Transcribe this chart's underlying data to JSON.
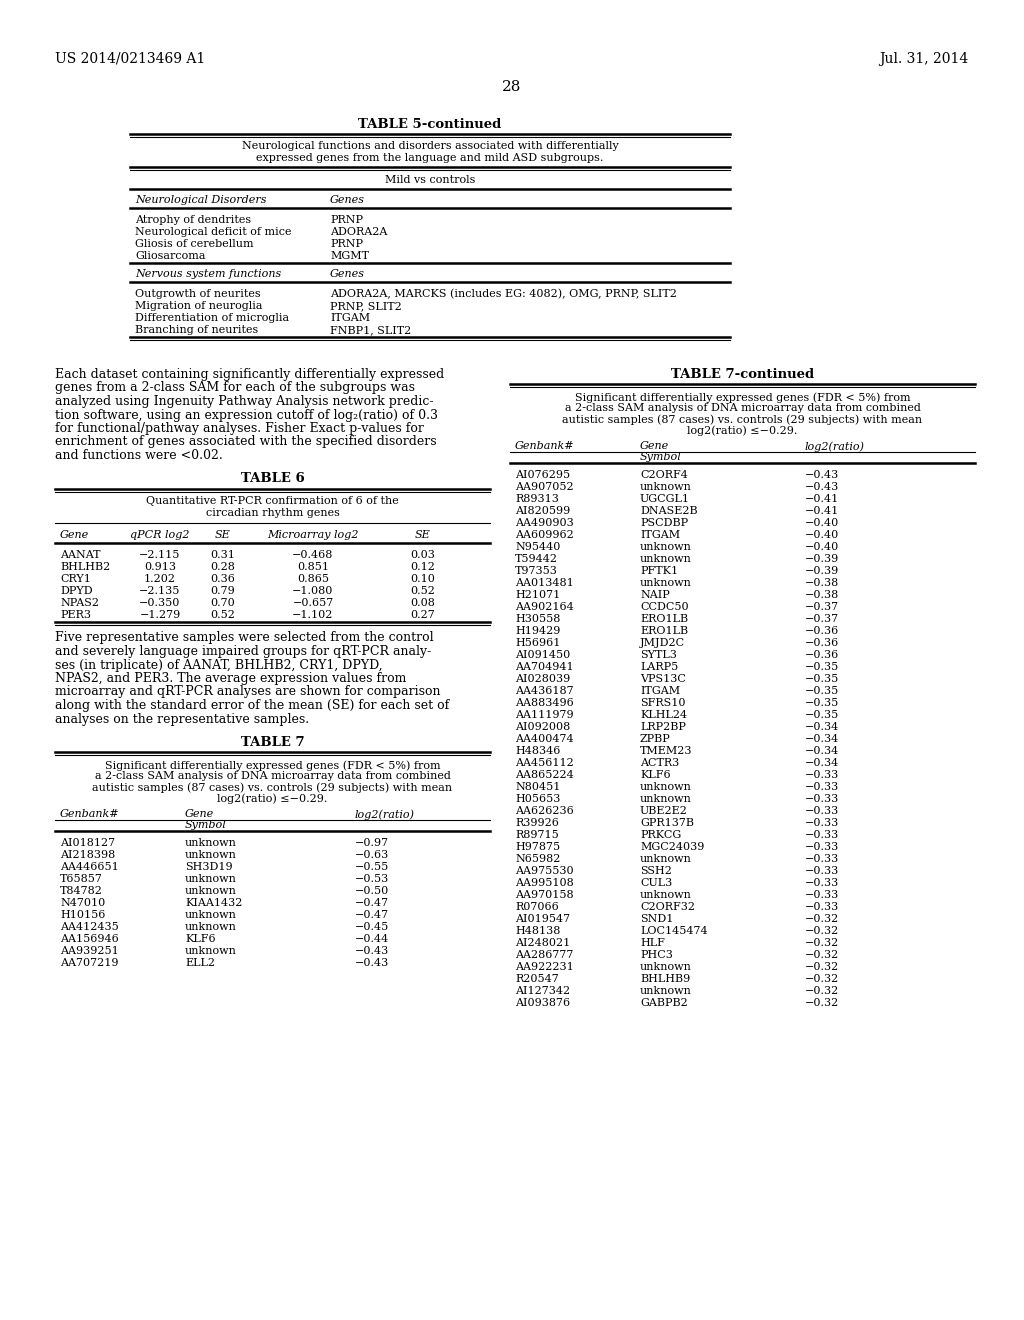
{
  "bg_color": "#ffffff",
  "header_left": "US 2014/0213469 A1",
  "header_right": "Jul. 31, 2014",
  "page_number": "28",
  "table5_title": "TABLE 5-continued",
  "table5_subtitle": "Neurological functions and disorders associated with differentially\nexpressed genes from the language and mild ASD subgroups.",
  "table5_section1_header": "Mild vs controls",
  "table5_col1_header": "Neurological Disorders",
  "table5_col2_header": "Genes",
  "table5_group1": [
    [
      "Atrophy of dendrites",
      "PRNP"
    ],
    [
      "Neurological deficit of mice",
      "ADORA2A"
    ],
    [
      "Gliosis of cerebellum",
      "PRNP"
    ],
    [
      "Gliosarcoma",
      "MGMT"
    ]
  ],
  "table5_group2_header1": "Nervous system functions",
  "table5_group2_header2": "Genes",
  "table5_group2": [
    [
      "Outgrowth of neurites",
      "ADORA2A, MARCKS (includes EG: 4082), OMG, PRNP, SLIT2"
    ],
    [
      "Migration of neuroglia",
      "PRNP, SLIT2"
    ],
    [
      "Differentiation of microglia",
      "ITGAM"
    ],
    [
      "Branching of neurites",
      "FNBP1, SLIT2"
    ]
  ],
  "paragraph1": "Each dataset containing significantly differentially expressed\ngenes from a 2-class SAM for each of the subgroups was\nanalyzed using Ingenuity Pathway Analysis network predic-\ntion software, using an expression cutoff of log₂(ratio) of 0.3\nfor functional/pathway analyses. Fisher Exact p-values for\nenrichment of genes associated with the specified disorders\nand functions were <0.02.",
  "table6_title": "TABLE 6",
  "table6_subtitle": "Quantitative RT-PCR confirmation of 6 of the\ncircadian rhythm genes",
  "table6_headers": [
    "Gene",
    "qPCR log2",
    "SE",
    "Microarray log2",
    "SE"
  ],
  "table6_data": [
    [
      "AANAT",
      "−2.115",
      "0.31",
      "−0.468",
      "0.03"
    ],
    [
      "BHLHB2",
      "0.913",
      "0.28",
      "0.851",
      "0.12"
    ],
    [
      "CRY1",
      "1.202",
      "0.36",
      "0.865",
      "0.10"
    ],
    [
      "DPYD",
      "−2.135",
      "0.79",
      "−1.080",
      "0.52"
    ],
    [
      "NPAS2",
      "−0.350",
      "0.70",
      "−0.657",
      "0.08"
    ],
    [
      "PER3",
      "−1.279",
      "0.52",
      "−1.102",
      "0.27"
    ]
  ],
  "paragraph2": "Five representative samples were selected from the control\nand severely language impaired groups for qRT-PCR analy-\nses (in triplicate) of AANAT, BHLHB2, CRY1, DPYD,\nNPAS2, and PER3. The average expression values from\nmicroarray and qRT-PCR analyses are shown for comparison\nalong with the standard error of the mean (SE) for each set of\nanalyses on the representative samples.",
  "table7_title": "TABLE 7",
  "table7_subtitle": "Significant differentially expressed genes (FDR < 5%) from\na 2-class SAM analysis of DNA microarray data from combined\nautistic samples (87 cases) vs. controls (29 subjects) with mean\nlog2(ratio) ≤−0.29.",
  "table7_data": [
    [
      "AI018127",
      "unknown",
      "−0.97"
    ],
    [
      "AI218398",
      "unknown",
      "−0.63"
    ],
    [
      "AA446651",
      "SH3D19",
      "−0.55"
    ],
    [
      "T65857",
      "unknown",
      "−0.53"
    ],
    [
      "T84782",
      "unknown",
      "−0.50"
    ],
    [
      "N47010",
      "KIAA1432",
      "−0.47"
    ],
    [
      "H10156",
      "unknown",
      "−0.47"
    ],
    [
      "AA412435",
      "unknown",
      "−0.45"
    ],
    [
      "AA156946",
      "KLF6",
      "−0.44"
    ],
    [
      "AA939251",
      "unknown",
      "−0.43"
    ],
    [
      "AA707219",
      "ELL2",
      "−0.43"
    ]
  ],
  "table7cont_title": "TABLE 7-continued",
  "table7cont_subtitle": "Significant differentially expressed genes (FDR < 5%) from\na 2-class SAM analysis of DNA microarray data from combined\nautistic samples (87 cases) vs. controls (29 subjects) with mean\nlog2(ratio) ≤−0.29.",
  "table7cont_data": [
    [
      "AI076295",
      "C2ORF4",
      "−0.43"
    ],
    [
      "AA907052",
      "unknown",
      "−0.43"
    ],
    [
      "R89313",
      "UGCGL1",
      "−0.41"
    ],
    [
      "AI820599",
      "DNASE2B",
      "−0.41"
    ],
    [
      "AA490903",
      "PSCDBP",
      "−0.40"
    ],
    [
      "AA609962",
      "ITGAM",
      "−0.40"
    ],
    [
      "N95440",
      "unknown",
      "−0.40"
    ],
    [
      "T59442",
      "unknown",
      "−0.39"
    ],
    [
      "T97353",
      "PFTK1",
      "−0.39"
    ],
    [
      "AA013481",
      "unknown",
      "−0.38"
    ],
    [
      "H21071",
      "NAIP",
      "−0.38"
    ],
    [
      "AA902164",
      "CCDC50",
      "−0.37"
    ],
    [
      "H30558",
      "ERO1LB",
      "−0.37"
    ],
    [
      "H19429",
      "ERO1LB",
      "−0.36"
    ],
    [
      "H56961",
      "JMJD2C",
      "−0.36"
    ],
    [
      "AI091450",
      "SYTL3",
      "−0.36"
    ],
    [
      "AA704941",
      "LARP5",
      "−0.35"
    ],
    [
      "AI028039",
      "VPS13C",
      "−0.35"
    ],
    [
      "AA436187",
      "ITGAM",
      "−0.35"
    ],
    [
      "AA883496",
      "SFRS10",
      "−0.35"
    ],
    [
      "AA111979",
      "KLHL24",
      "−0.35"
    ],
    [
      "AI092008",
      "LRP2BP",
      "−0.34"
    ],
    [
      "AA400474",
      "ZPBP",
      "−0.34"
    ],
    [
      "H48346",
      "TMEM23",
      "−0.34"
    ],
    [
      "AA456112",
      "ACTR3",
      "−0.34"
    ],
    [
      "AA865224",
      "KLF6",
      "−0.33"
    ],
    [
      "N80451",
      "unknown",
      "−0.33"
    ],
    [
      "H05653",
      "unknown",
      "−0.33"
    ],
    [
      "AA626236",
      "UBE2E2",
      "−0.33"
    ],
    [
      "R39926",
      "GPR137B",
      "−0.33"
    ],
    [
      "R89715",
      "PRKCG",
      "−0.33"
    ],
    [
      "H97875",
      "MGC24039",
      "−0.33"
    ],
    [
      "N65982",
      "unknown",
      "−0.33"
    ],
    [
      "AA975530",
      "SSH2",
      "−0.33"
    ],
    [
      "AA995108",
      "CUL3",
      "−0.33"
    ],
    [
      "AA970158",
      "unknown",
      "−0.33"
    ],
    [
      "R07066",
      "C2ORF32",
      "−0.33"
    ],
    [
      "AI019547",
      "SND1",
      "−0.32"
    ],
    [
      "H48138",
      "LOC145474",
      "−0.32"
    ],
    [
      "AI248021",
      "HLF",
      "−0.32"
    ],
    [
      "AA286777",
      "PHC3",
      "−0.32"
    ],
    [
      "AA922231",
      "unknown",
      "−0.32"
    ],
    [
      "R20547",
      "BHLHB9",
      "−0.32"
    ],
    [
      "AI127342",
      "unknown",
      "−0.32"
    ],
    [
      "AI093876",
      "GABPB2",
      "−0.32"
    ]
  ]
}
